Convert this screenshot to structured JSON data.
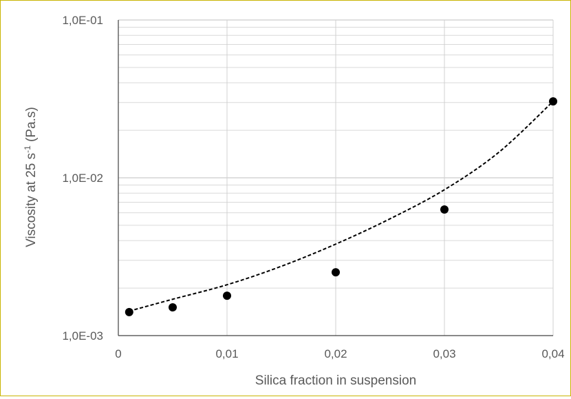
{
  "chart_data": {
    "type": "scatter",
    "title": "",
    "xlabel": "Silica fraction in suspension",
    "ylabel": {
      "prefix": "Viscosity at 25 s",
      "superscript": "-1",
      "suffix": " (Pa.s)"
    },
    "xlim": [
      0,
      0.04
    ],
    "ylim": [
      0.001,
      0.1
    ],
    "yscale": "log",
    "grid": {
      "x_major": true,
      "y_major": true,
      "y_minor": true
    },
    "x_ticks": [
      {
        "value": 0,
        "label": "0"
      },
      {
        "value": 0.01,
        "label": "0,01"
      },
      {
        "value": 0.02,
        "label": "0,02"
      },
      {
        "value": 0.03,
        "label": "0,03"
      },
      {
        "value": 0.04,
        "label": "0,04"
      }
    ],
    "y_ticks": [
      {
        "value": 0.001,
        "label": "1,0E-03"
      },
      {
        "value": 0.01,
        "label": "1,0E-02"
      },
      {
        "value": 0.1,
        "label": "1,0E-01"
      }
    ],
    "series": [
      {
        "marker": "circle",
        "color": "#000000",
        "x": [
          0.001,
          0.005,
          0.01,
          0.02,
          0.03,
          0.04
        ],
        "y": [
          0.00141,
          0.00151,
          0.00179,
          0.00252,
          0.0063,
          0.0305
        ]
      }
    ],
    "trendline": {
      "style": "dashed",
      "color": "#000000",
      "x": [
        0.001,
        0.005,
        0.01,
        0.015,
        0.02,
        0.025,
        0.03,
        0.035,
        0.04
      ],
      "y": [
        0.00143,
        0.0017,
        0.0021,
        0.00275,
        0.0038,
        0.0055,
        0.0084,
        0.0145,
        0.0305
      ]
    }
  }
}
